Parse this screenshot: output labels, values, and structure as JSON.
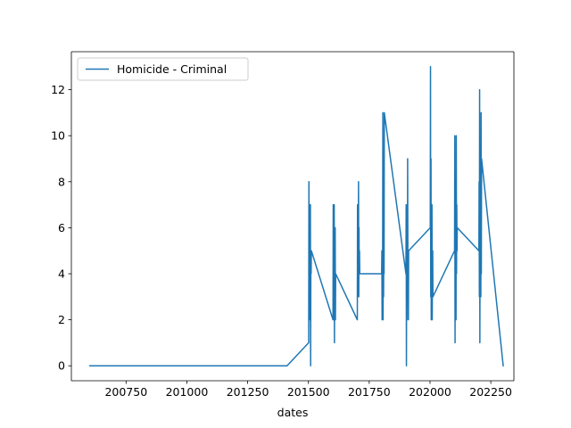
{
  "chart_data": {
    "type": "line",
    "title": "",
    "xlabel": "dates",
    "ylabel": "",
    "xlim": [
      200525,
      202345
    ],
    "ylim": [
      -0.65,
      13.65
    ],
    "xticks": [
      200750,
      201000,
      201250,
      201500,
      201750,
      202000,
      202250
    ],
    "yticks": [
      0,
      2,
      4,
      6,
      8,
      10,
      12
    ],
    "grid": false,
    "legend_position": "top-left",
    "series": [
      {
        "name": "Homicide - Criminal",
        "color": "#1f77b4",
        "x": [
          200601,
          201412,
          201501,
          201502,
          201503,
          201504,
          201505,
          201506,
          201507,
          201508,
          201509,
          201510,
          201511,
          201512,
          201601,
          201602,
          201603,
          201604,
          201605,
          201606,
          201607,
          201608,
          201609,
          201610,
          201611,
          201612,
          201701,
          201702,
          201703,
          201704,
          201705,
          201706,
          201707,
          201708,
          201709,
          201710,
          201711,
          201712,
          201801,
          201802,
          201803,
          201804,
          201805,
          201806,
          201807,
          201808,
          201809,
          201810,
          201811,
          201812,
          201901,
          201902,
          201903,
          201904,
          201905,
          201906,
          201907,
          201908,
          201909,
          201910,
          201911,
          201912,
          202001,
          202002,
          202003,
          202004,
          202005,
          202006,
          202007,
          202008,
          202009,
          202010,
          202011,
          202012,
          202101,
          202102,
          202103,
          202104,
          202105,
          202106,
          202107,
          202108,
          202109,
          202110,
          202111,
          202112,
          202201,
          202202,
          202203,
          202204,
          202205,
          202206,
          202207,
          202208,
          202209,
          202210,
          202211,
          202212,
          202301
        ],
        "y": [
          0,
          0,
          1,
          8,
          2,
          7,
          3,
          6,
          2,
          7,
          0,
          5,
          4,
          5,
          2,
          7,
          3,
          6,
          2,
          7,
          1,
          5,
          3,
          6,
          2,
          4,
          2,
          7,
          3,
          6,
          5,
          8,
          3,
          6,
          4,
          5,
          4,
          4,
          4,
          5,
          2,
          4,
          3,
          11,
          2,
          9,
          3,
          6,
          4,
          11,
          4,
          7,
          0,
          6,
          2,
          7,
          3,
          9,
          4,
          5,
          2,
          5,
          6,
          13,
          3,
          9,
          2,
          5,
          3,
          7,
          2,
          4,
          5,
          3,
          5,
          10,
          1,
          8,
          3,
          6,
          2,
          10,
          4,
          7,
          5,
          6,
          5,
          8,
          3,
          12,
          1,
          7,
          5,
          9,
          3,
          11,
          4,
          9,
          0
        ]
      }
    ]
  }
}
